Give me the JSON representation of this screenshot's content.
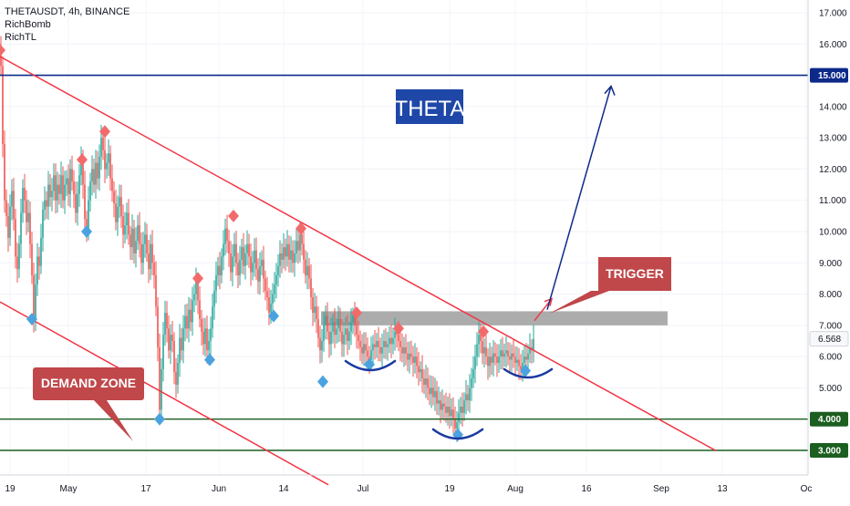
{
  "legend": {
    "symbol": "THETAUSDT, 4h, BINANCE",
    "indicators": [
      "RichBomb",
      "RichTL"
    ]
  },
  "annotations": {
    "title": "THETA",
    "trigger": "TRIGGER",
    "demand_zone": "DEMAND ZONE"
  },
  "colors": {
    "up": "#26a69a",
    "down": "#ef5350",
    "trendline": "#f23645",
    "resistance_line": "#0d2a8a",
    "support_line": "#1b5e20",
    "zone": "#9e9e9e",
    "callout": "#c0474a",
    "title_box": "#1e47a8",
    "pattern": "#1a3aa0",
    "marker_top": "#f26b6b",
    "marker_bottom": "#4aa3df"
  },
  "chart_data": {
    "type": "candlestick",
    "ylim": [
      2.5,
      17.4
    ],
    "y_ticks": [
      3,
      4,
      5,
      6,
      7,
      8,
      9,
      10,
      11,
      12,
      13,
      14,
      15,
      16,
      17
    ],
    "y_tick_labels": [
      "3.000",
      "4.000",
      "5.000",
      "6.000",
      "7.000",
      "8.000",
      "9.000",
      "10.000",
      "11.000",
      "12.000",
      "13.000",
      "14.000",
      "15.000",
      "16.000",
      "17.000"
    ],
    "x_labels": [
      "19",
      "May",
      "17",
      "Jun",
      "14",
      "Jul",
      "19",
      "Aug",
      "16",
      "Sep",
      "13",
      "Oc"
    ],
    "last_price": 6.568,
    "last_price_label": "6.568",
    "levels": [
      {
        "value": 15.0,
        "label": "15.000",
        "kind": "resistance"
      },
      {
        "value": 4.0,
        "label": "4.000",
        "kind": "support"
      },
      {
        "value": 3.0,
        "label": "3.000",
        "kind": "support"
      }
    ],
    "trigger_zone": [
      7.0,
      7.45
    ],
    "path": [
      [
        0,
        15.8
      ],
      [
        2,
        15.3
      ],
      [
        4,
        12.8
      ],
      [
        6,
        11.0
      ],
      [
        8,
        10.5
      ],
      [
        10,
        9.8
      ],
      [
        12,
        10.8
      ],
      [
        14,
        11.3
      ],
      [
        16,
        10.4
      ],
      [
        18,
        9.2
      ],
      [
        20,
        8.8
      ],
      [
        22,
        9.6
      ],
      [
        24,
        10.6
      ],
      [
        26,
        11.4
      ],
      [
        28,
        11.0
      ],
      [
        30,
        10.3
      ],
      [
        32,
        10.6
      ],
      [
        34,
        9.6
      ],
      [
        36,
        8.6
      ],
      [
        38,
        7.2
      ],
      [
        40,
        8.3
      ],
      [
        42,
        9.2
      ],
      [
        44,
        8.9
      ],
      [
        46,
        9.8
      ],
      [
        48,
        10.7
      ],
      [
        50,
        11.0
      ],
      [
        52,
        10.8
      ],
      [
        54,
        11.5
      ],
      [
        56,
        11.1
      ],
      [
        58,
        11.3
      ],
      [
        60,
        11.8
      ],
      [
        62,
        11.0
      ],
      [
        64,
        11.5
      ],
      [
        66,
        11.2
      ],
      [
        68,
        11.8
      ],
      [
        70,
        11.0
      ],
      [
        72,
        11.5
      ],
      [
        74,
        11.7
      ],
      [
        76,
        11.2
      ],
      [
        78,
        12.0
      ],
      [
        80,
        11.6
      ],
      [
        82,
        11.2
      ],
      [
        84,
        10.6
      ],
      [
        86,
        11.2
      ],
      [
        88,
        11.8
      ],
      [
        90,
        12.3
      ],
      [
        92,
        11.5
      ],
      [
        94,
        10.4
      ],
      [
        96,
        10.1
      ],
      [
        98,
        11.0
      ],
      [
        100,
        11.6
      ],
      [
        102,
        12.0
      ],
      [
        104,
        11.5
      ],
      [
        106,
        12.2
      ],
      [
        108,
        11.7
      ],
      [
        110,
        12.4
      ],
      [
        112,
        13.0
      ],
      [
        114,
        12.6
      ],
      [
        116,
        12.0
      ],
      [
        118,
        12.2
      ],
      [
        120,
        12.5
      ],
      [
        122,
        11.7
      ],
      [
        124,
        11.3
      ],
      [
        126,
        10.9
      ],
      [
        128,
        10.3
      ],
      [
        130,
        10.8
      ],
      [
        132,
        11.1
      ],
      [
        134,
        10.5
      ],
      [
        136,
        9.9
      ],
      [
        138,
        10.2
      ],
      [
        140,
        10.6
      ],
      [
        142,
        9.9
      ],
      [
        144,
        9.5
      ],
      [
        146,
        10.1
      ],
      [
        148,
        9.3
      ],
      [
        150,
        9.7
      ],
      [
        152,
        10.2
      ],
      [
        154,
        9.6
      ],
      [
        156,
        9.0
      ],
      [
        158,
        9.6
      ],
      [
        160,
        9.9
      ],
      [
        162,
        9.3
      ],
      [
        164,
        8.8
      ],
      [
        166,
        9.6
      ],
      [
        168,
        9.0
      ],
      [
        170,
        8.6
      ],
      [
        172,
        7.6
      ],
      [
        174,
        6.3
      ],
      [
        176,
        4.3
      ],
      [
        178,
        5.6
      ],
      [
        180,
        6.7
      ],
      [
        182,
        7.4
      ],
      [
        184,
        6.9
      ],
      [
        186,
        6.2
      ],
      [
        188,
        6.7
      ],
      [
        190,
        6.5
      ],
      [
        192,
        5.5
      ],
      [
        194,
        5.1
      ],
      [
        196,
        5.8
      ],
      [
        198,
        6.6
      ],
      [
        200,
        6.2
      ],
      [
        202,
        6.9
      ],
      [
        204,
        7.3
      ],
      [
        206,
        6.9
      ],
      [
        208,
        7.5
      ],
      [
        210,
        7.1
      ],
      [
        212,
        7.8
      ],
      [
        214,
        8.0
      ],
      [
        216,
        8.4
      ],
      [
        218,
        7.8
      ],
      [
        220,
        7.2
      ],
      [
        222,
        6.8
      ],
      [
        224,
        6.4
      ],
      [
        226,
        6.9
      ],
      [
        228,
        6.2
      ],
      [
        230,
        6.5
      ],
      [
        232,
        6.9
      ],
      [
        234,
        7.6
      ],
      [
        236,
        8.1
      ],
      [
        238,
        8.6
      ],
      [
        240,
        8.9
      ],
      [
        242,
        8.6
      ],
      [
        244,
        9.2
      ],
      [
        246,
        9.6
      ],
      [
        248,
        10.1
      ],
      [
        250,
        9.7
      ],
      [
        252,
        9.3
      ],
      [
        254,
        8.7
      ],
      [
        256,
        9.2
      ],
      [
        258,
        9.6
      ],
      [
        260,
        9.0
      ],
      [
        262,
        8.6
      ],
      [
        264,
        9.1
      ],
      [
        266,
        9.5
      ],
      [
        268,
        8.9
      ],
      [
        270,
        9.3
      ],
      [
        272,
        9.6
      ],
      [
        274,
        9.2
      ],
      [
        276,
        8.7
      ],
      [
        278,
        9.0
      ],
      [
        280,
        9.4
      ],
      [
        282,
        8.8
      ],
      [
        284,
        8.4
      ],
      [
        286,
        8.9
      ],
      [
        288,
        9.1
      ],
      [
        290,
        8.5
      ],
      [
        292,
        8.1
      ],
      [
        294,
        7.9
      ],
      [
        296,
        7.4
      ],
      [
        298,
        7.7
      ],
      [
        300,
        8.0
      ],
      [
        302,
        8.3
      ],
      [
        304,
        8.6
      ],
      [
        306,
        8.9
      ],
      [
        308,
        9.3
      ],
      [
        310,
        9.1
      ],
      [
        312,
        9.5
      ],
      [
        314,
        9.2
      ],
      [
        316,
        9.6
      ],
      [
        318,
        9.1
      ],
      [
        320,
        9.4
      ],
      [
        322,
        9.0
      ],
      [
        324,
        9.3
      ],
      [
        326,
        9.7
      ],
      [
        328,
        9.4
      ],
      [
        330,
        9.9
      ],
      [
        332,
        9.6
      ],
      [
        334,
        9.1
      ],
      [
        336,
        8.6
      ],
      [
        338,
        8.9
      ],
      [
        340,
        8.5
      ],
      [
        342,
        7.9
      ],
      [
        344,
        7.4
      ],
      [
        346,
        7.6
      ],
      [
        348,
        7.2
      ],
      [
        350,
        6.6
      ],
      [
        352,
        6.2
      ],
      [
        354,
        6.5
      ],
      [
        356,
        7.0
      ],
      [
        358,
        7.3
      ],
      [
        360,
        6.8
      ],
      [
        362,
        6.4
      ],
      [
        364,
        6.8
      ],
      [
        366,
        7.1
      ],
      [
        368,
        6.7
      ],
      [
        370,
        6.9
      ],
      [
        372,
        7.2
      ],
      [
        374,
        6.8
      ],
      [
        376,
        6.4
      ],
      [
        378,
        6.7
      ],
      [
        380,
        6.9
      ],
      [
        382,
        6.5
      ],
      [
        384,
        6.8
      ],
      [
        386,
        7.1
      ],
      [
        388,
        7.3
      ],
      [
        390,
        7.0
      ],
      [
        392,
        6.7
      ],
      [
        394,
        6.5
      ],
      [
        396,
        6.3
      ],
      [
        398,
        6.1
      ],
      [
        400,
        6.4
      ],
      [
        402,
        6.2
      ],
      [
        404,
        6.0
      ],
      [
        406,
        5.9
      ],
      [
        408,
        6.2
      ],
      [
        410,
        6.4
      ],
      [
        412,
        6.3
      ],
      [
        414,
        6.5
      ],
      [
        416,
        6.3
      ],
      [
        418,
        6.1
      ],
      [
        420,
        6.3
      ],
      [
        422,
        6.5
      ],
      [
        424,
        6.3
      ],
      [
        426,
        6.4
      ],
      [
        428,
        6.6
      ],
      [
        430,
        6.4
      ],
      [
        432,
        6.6
      ],
      [
        434,
        6.8
      ],
      [
        436,
        6.7
      ],
      [
        438,
        6.5
      ],
      [
        440,
        6.3
      ],
      [
        442,
        6.1
      ],
      [
        444,
        6.3
      ],
      [
        446,
        6.1
      ],
      [
        448,
        5.9
      ],
      [
        450,
        6.1
      ],
      [
        452,
        6.0
      ],
      [
        454,
        5.8
      ],
      [
        456,
        6.0
      ],
      [
        458,
        5.7
      ],
      [
        460,
        5.5
      ],
      [
        462,
        5.6
      ],
      [
        464,
        5.3
      ],
      [
        466,
        5.1
      ],
      [
        468,
        5.3
      ],
      [
        470,
        5.0
      ],
      [
        472,
        4.8
      ],
      [
        474,
        5.0
      ],
      [
        476,
        4.7
      ],
      [
        478,
        4.9
      ],
      [
        480,
        4.5
      ],
      [
        482,
        4.6
      ],
      [
        484,
        4.3
      ],
      [
        486,
        4.5
      ],
      [
        488,
        4.4
      ],
      [
        490,
        4.2
      ],
      [
        492,
        4.4
      ],
      [
        494,
        4.1
      ],
      [
        496,
        4.3
      ],
      [
        498,
        4.0
      ],
      [
        500,
        3.7
      ],
      [
        502,
        3.9
      ],
      [
        504,
        4.2
      ],
      [
        506,
        4.4
      ],
      [
        508,
        4.2
      ],
      [
        510,
        4.6
      ],
      [
        512,
        4.8
      ],
      [
        514,
        4.6
      ],
      [
        516,
        5.0
      ],
      [
        518,
        5.3
      ],
      [
        520,
        5.6
      ],
      [
        522,
        6.0
      ],
      [
        524,
        6.4
      ],
      [
        526,
        6.7
      ],
      [
        528,
        6.5
      ],
      [
        530,
        6.1
      ],
      [
        532,
        6.3
      ],
      [
        534,
        6.0
      ],
      [
        536,
        5.7
      ],
      [
        538,
        6.0
      ],
      [
        540,
        5.8
      ],
      [
        542,
        6.1
      ],
      [
        544,
        6.0
      ],
      [
        546,
        5.8
      ],
      [
        548,
        6.0
      ],
      [
        550,
        6.2
      ],
      [
        552,
        6.0
      ],
      [
        554,
        6.1
      ],
      [
        556,
        6.2
      ],
      [
        558,
        6.0
      ],
      [
        560,
        5.9
      ],
      [
        562,
        6.1
      ],
      [
        564,
        6.0
      ],
      [
        566,
        5.8
      ],
      [
        568,
        5.9
      ],
      [
        570,
        5.7
      ],
      [
        572,
        5.6
      ],
      [
        574,
        5.8
      ],
      [
        576,
        6.0
      ],
      [
        578,
        5.9
      ],
      [
        580,
        6.1
      ],
      [
        582,
        6.3
      ],
      [
        584,
        6.2
      ],
      [
        586,
        6.57
      ]
    ],
    "tops": [
      [
        0,
        15.8
      ],
      [
        90,
        12.3
      ],
      [
        115,
        13.2
      ],
      [
        217,
        8.5
      ],
      [
        256,
        10.5
      ],
      [
        330,
        10.1
      ],
      [
        391,
        7.4
      ],
      [
        437,
        6.9
      ],
      [
        530,
        6.8
      ]
    ],
    "bottoms": [
      [
        35,
        7.2
      ],
      [
        95,
        10.0
      ],
      [
        175,
        4.0
      ],
      [
        230,
        5.9
      ],
      [
        300,
        7.3
      ],
      [
        354,
        5.2
      ],
      [
        405,
        5.75
      ],
      [
        502,
        3.5
      ],
      [
        576,
        5.55
      ]
    ],
    "channel_upper": [
      [
        0,
        15.6
      ],
      [
        785,
        2.99
      ]
    ],
    "channel_lower": [
      [
        0,
        7.75
      ],
      [
        360,
        1.9
      ]
    ],
    "projection": [
      [
        586,
        7.15
      ],
      [
        605,
        7.85
      ]
    ],
    "target_arrow": [
      [
        600,
        7.5
      ],
      [
        670,
        14.65
      ]
    ]
  }
}
